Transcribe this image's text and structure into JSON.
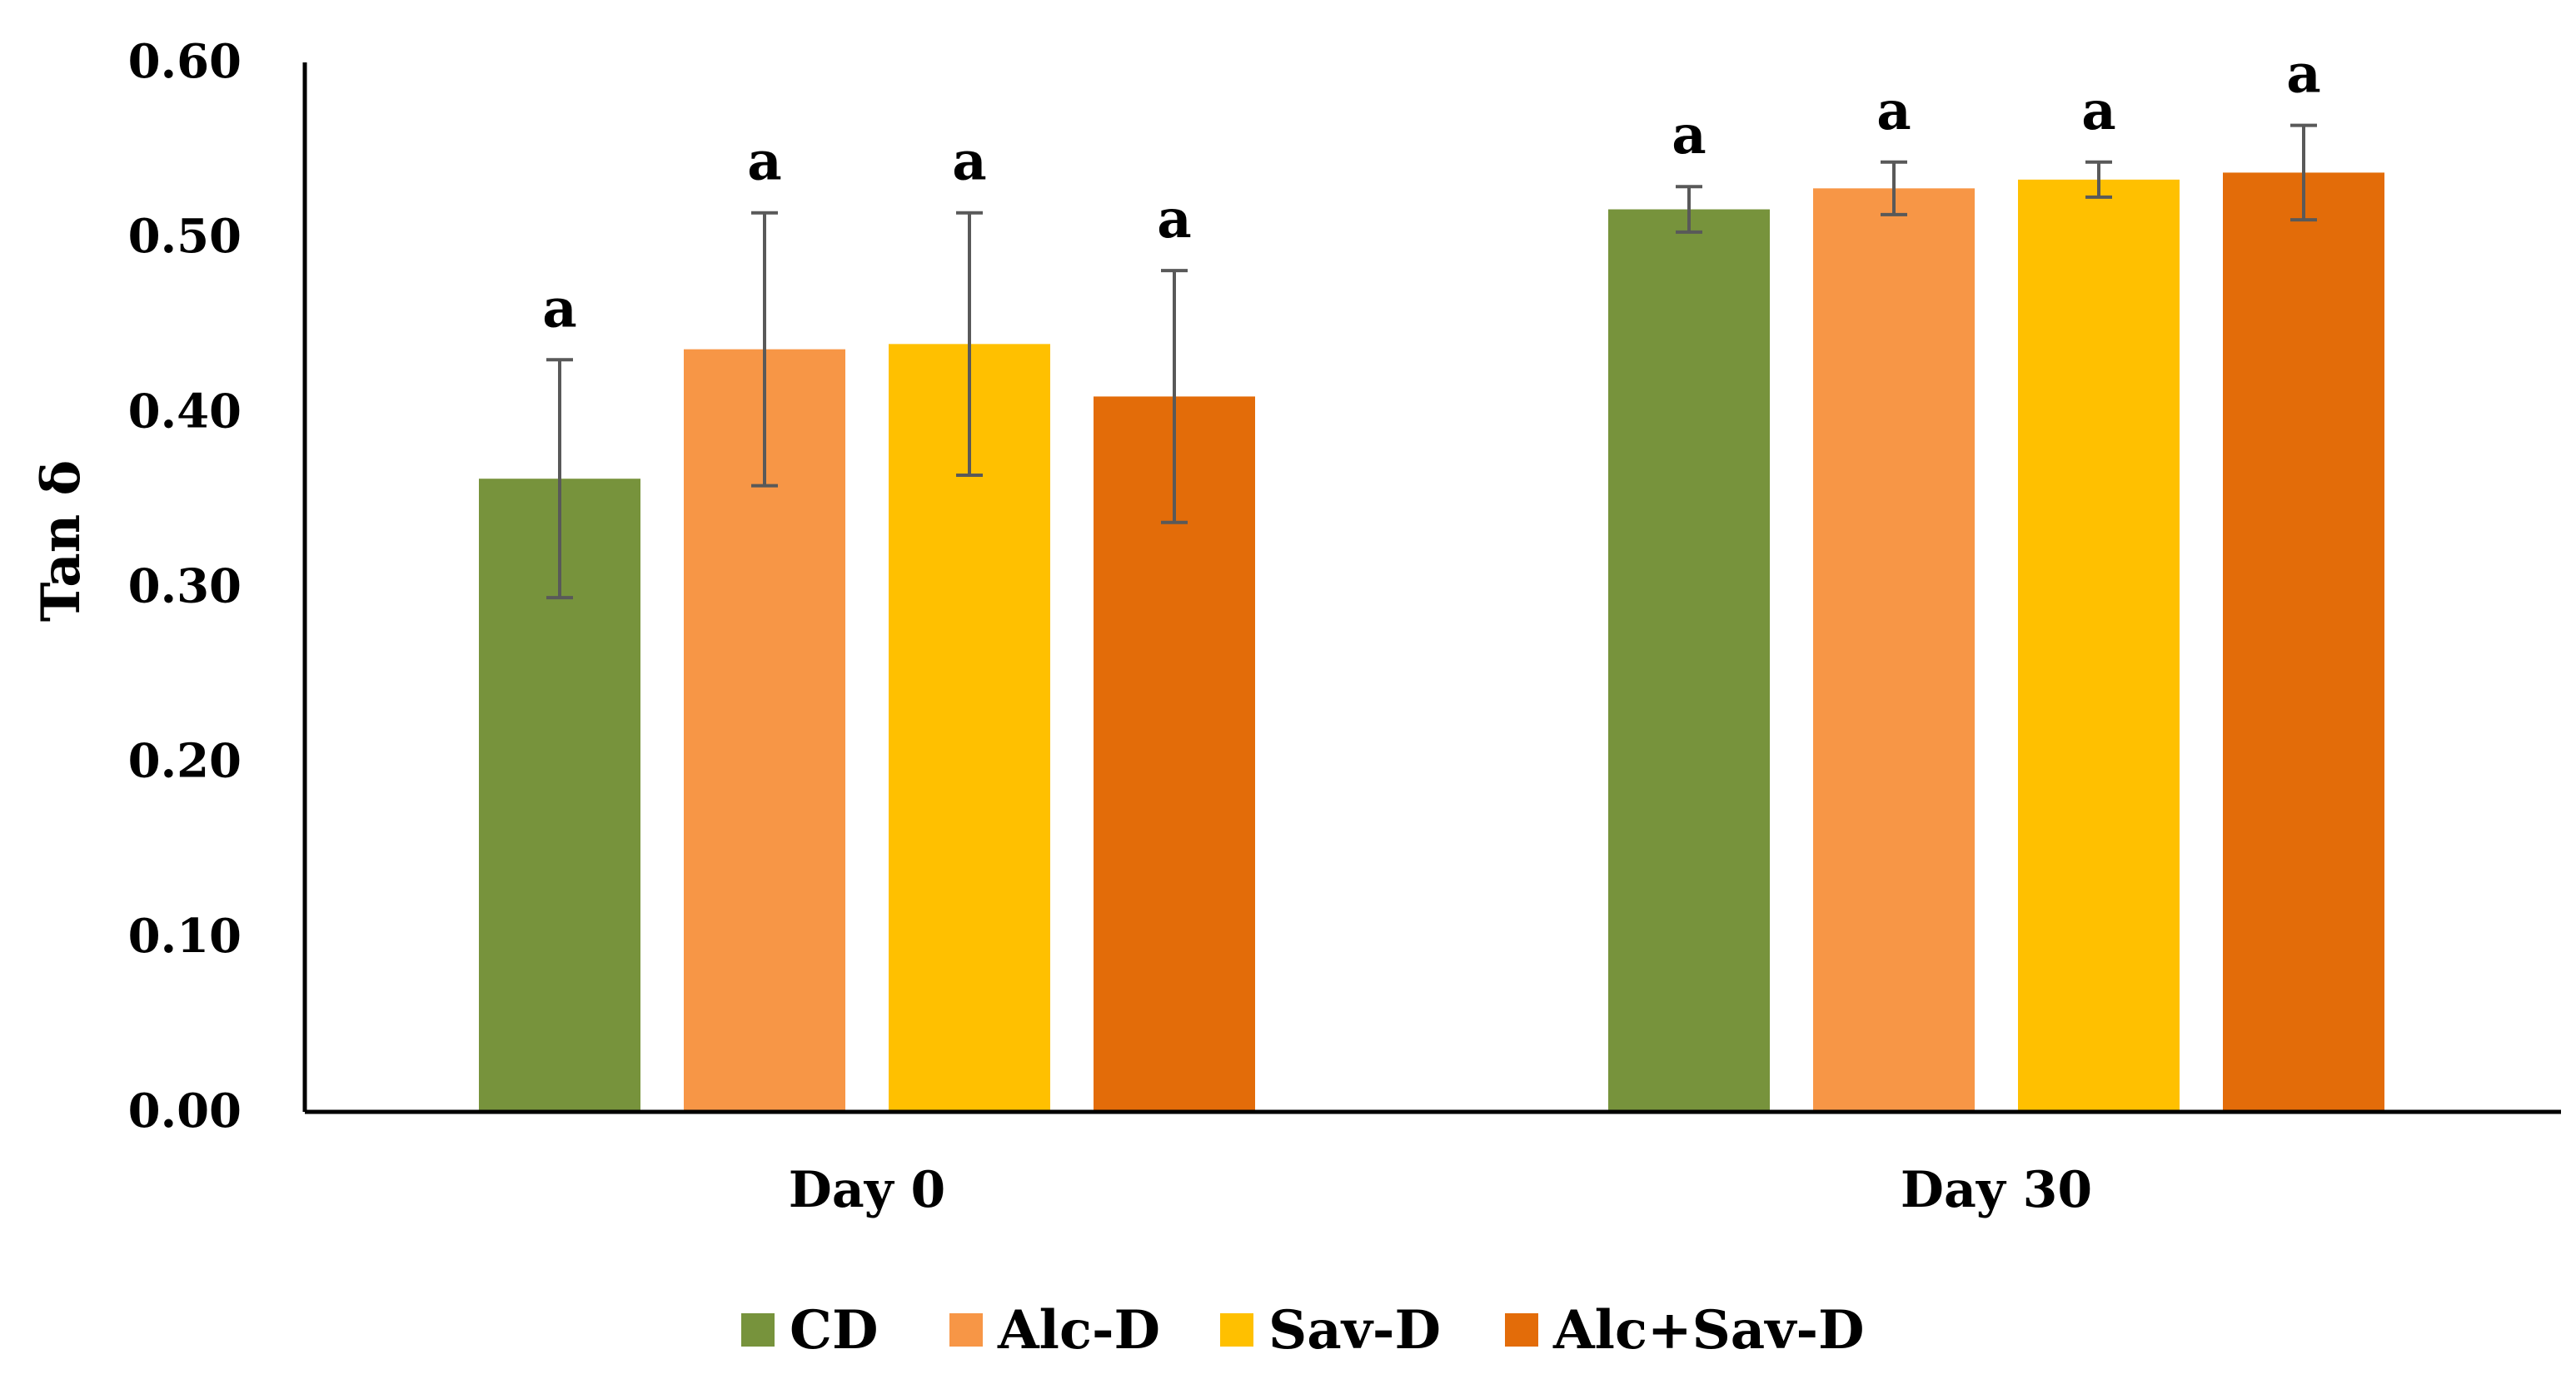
{
  "chart_data": {
    "type": "bar",
    "title": "",
    "xlabel": "",
    "ylabel": "Tan δ",
    "ylim": [
      0,
      0.6
    ],
    "yticks": [
      "0.00",
      "0.10",
      "0.20",
      "0.30",
      "0.40",
      "0.50",
      "0.60"
    ],
    "grid": false,
    "legend_position": "bottom",
    "categories": [
      "Day 0",
      "Day 30"
    ],
    "series": [
      {
        "name": "CD",
        "color": "#77933C",
        "values": [
          0.362,
          0.516
        ],
        "errors": [
          0.068,
          0.013
        ],
        "labels": [
          "a",
          "a"
        ]
      },
      {
        "name": "Alc-D",
        "color": "#F79646",
        "values": [
          0.436,
          0.528
        ],
        "errors": [
          0.078,
          0.015
        ],
        "labels": [
          "a",
          "a"
        ]
      },
      {
        "name": "Sav-D",
        "color": "#FFC000",
        "values": [
          0.439,
          0.533
        ],
        "errors": [
          0.075,
          0.01
        ],
        "labels": [
          "a",
          "a"
        ]
      },
      {
        "name": "Alc+Sav-D",
        "color": "#E36C09",
        "values": [
          0.409,
          0.537
        ],
        "errors": [
          0.072,
          0.027
        ],
        "labels": [
          "a",
          "a"
        ]
      }
    ]
  }
}
